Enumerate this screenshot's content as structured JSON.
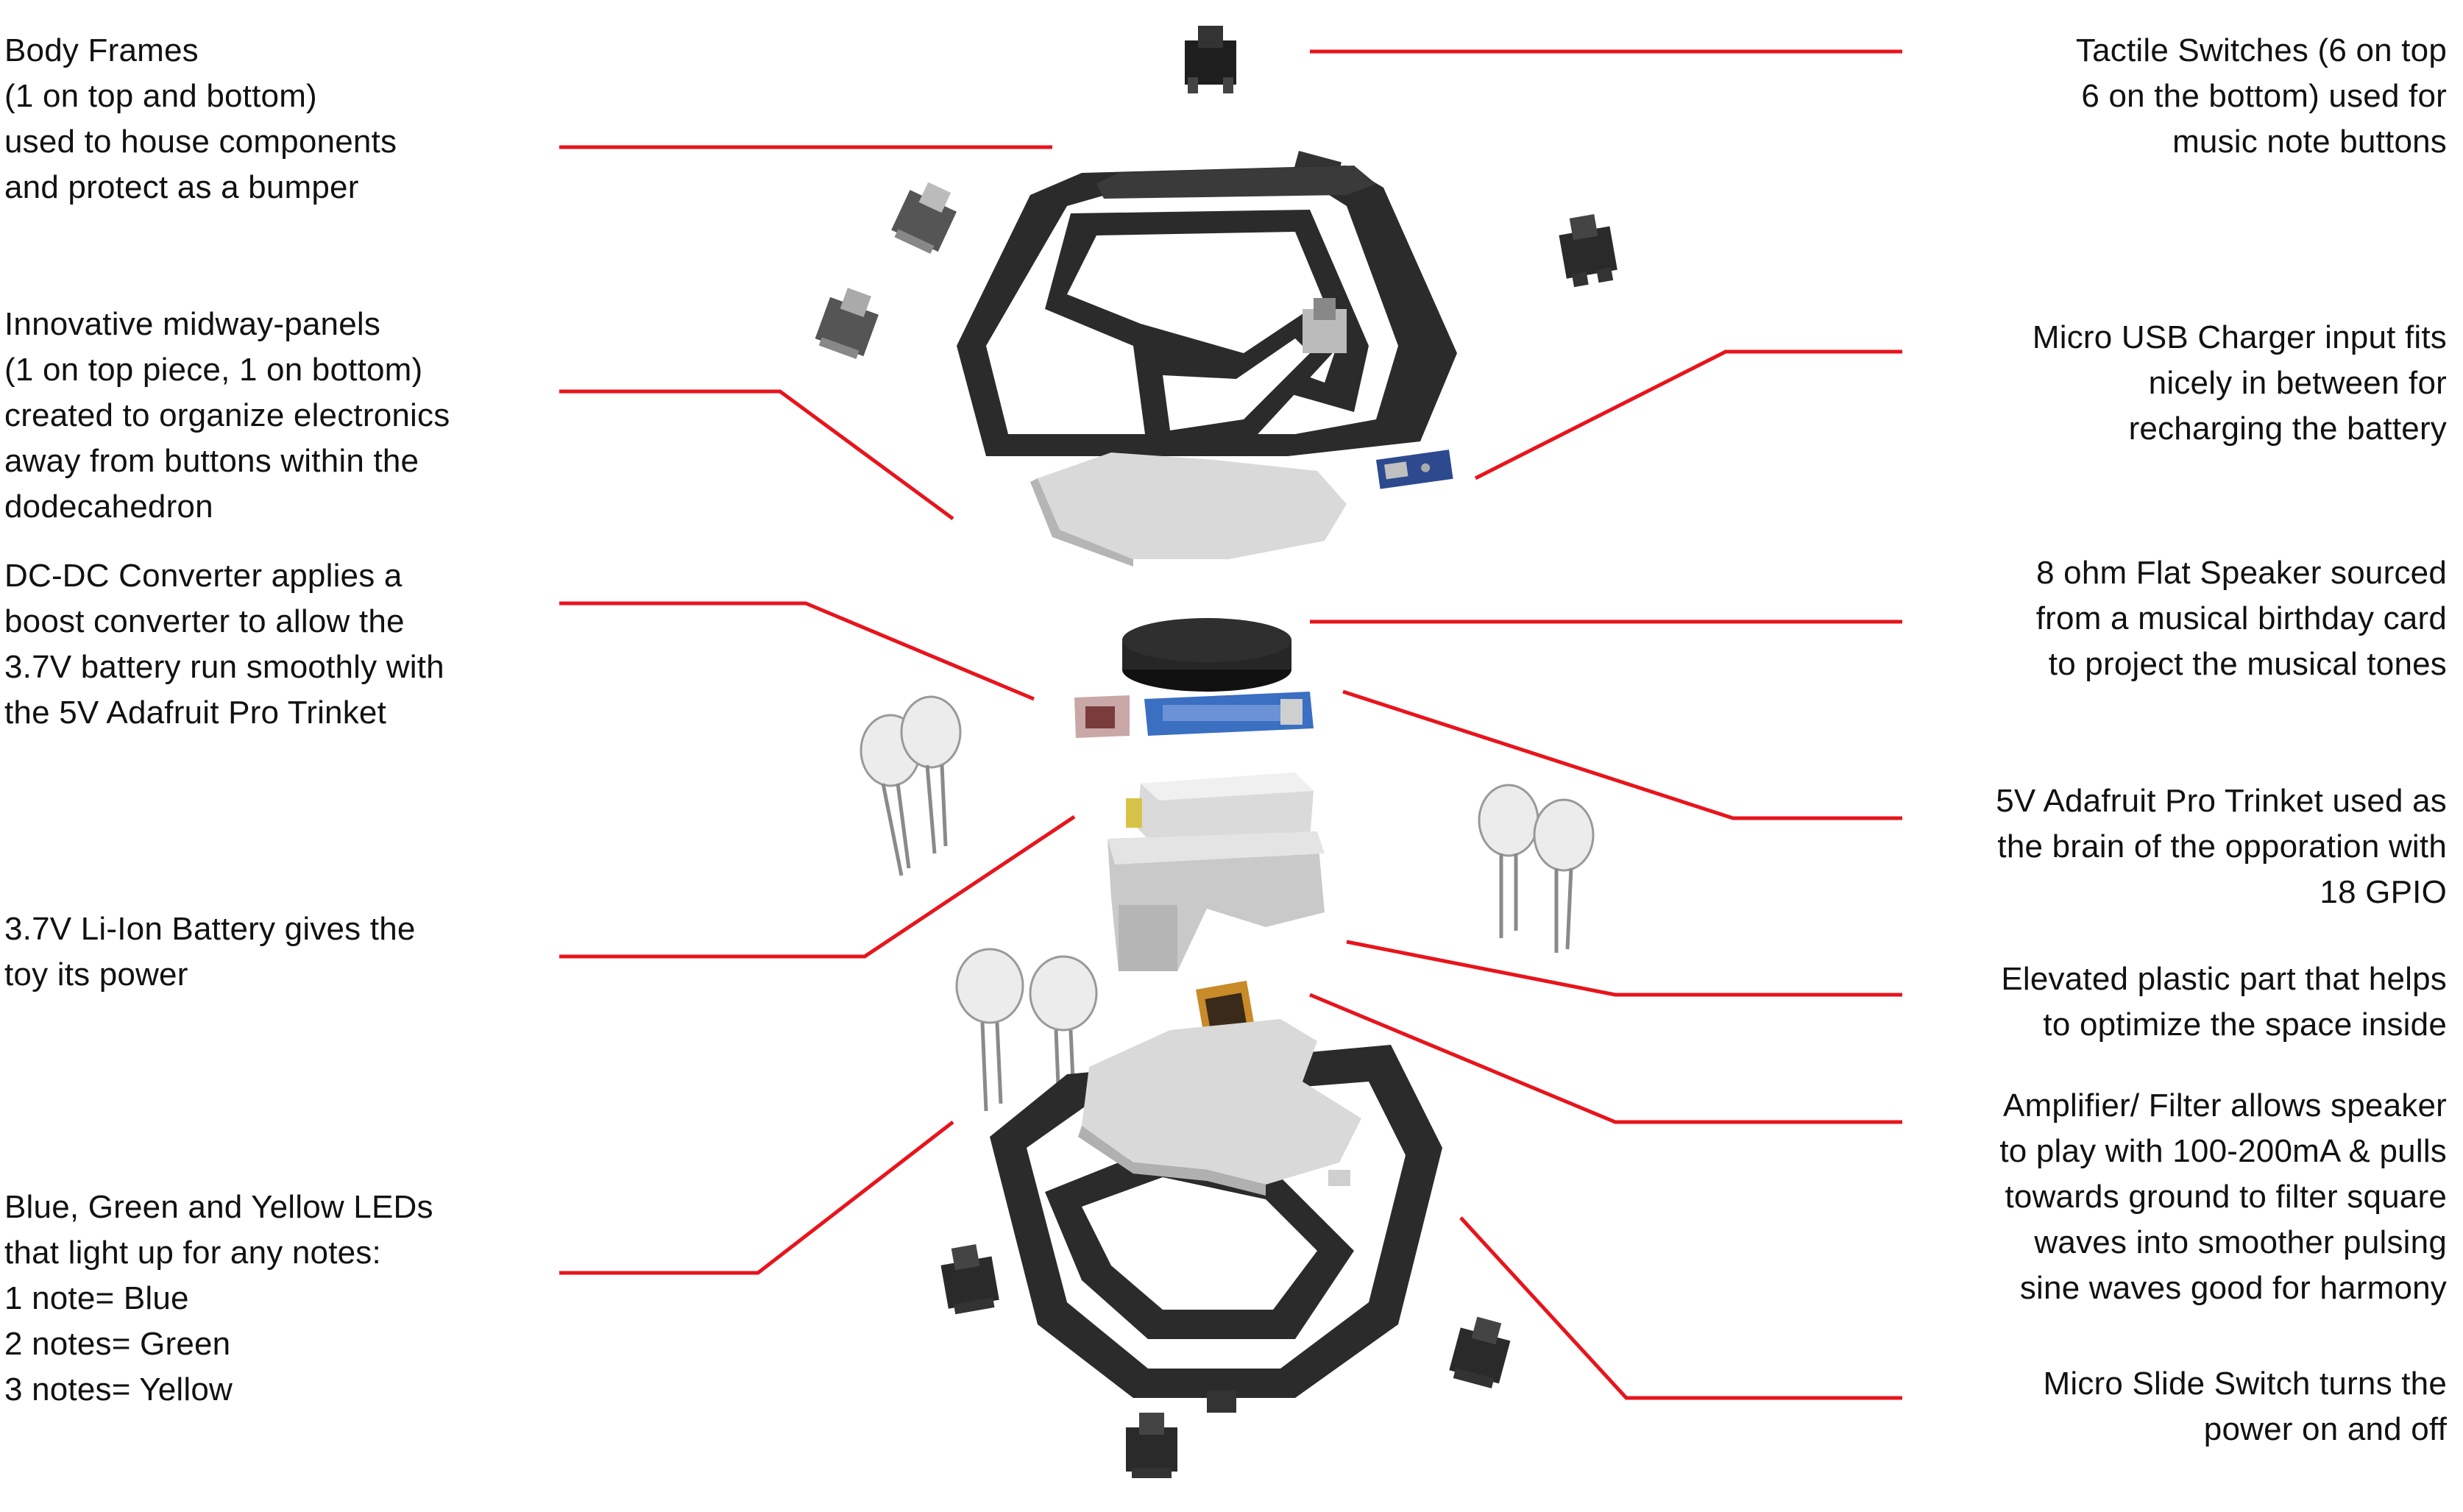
{
  "annotations": {
    "left": [
      {
        "id": "body-frames",
        "text": "Body Frames\n(1 on top and bottom)\nused to house components\nand protect as a bumper"
      },
      {
        "id": "midway-panels",
        "text": "Innovative midway-panels\n(1 on top piece, 1 on bottom)\ncreated to organize electronics\naway from buttons within the\ndodecahedron"
      },
      {
        "id": "dc-dc-converter",
        "text": "DC-DC Converter applies a\nboost converter to allow the\n3.7V battery run smoothly with\nthe 5V Adafruit Pro Trinket"
      },
      {
        "id": "battery",
        "text": "3.7V Li-Ion Battery gives the\ntoy its power"
      },
      {
        "id": "leds",
        "text": "Blue, Green and Yellow LEDs\nthat light up for any notes:\n1 note= Blue\n2 notes= Green\n3 notes= Yellow"
      }
    ],
    "right": [
      {
        "id": "tactile-switches",
        "text": "Tactile Switches (6 on top\n6 on the bottom) used for\nmusic note buttons"
      },
      {
        "id": "usb-charger",
        "text": "Micro USB Charger input fits\nnicely in between for\nrecharging the battery"
      },
      {
        "id": "speaker",
        "text": "8 ohm Flat Speaker sourced\nfrom a musical birthday card\nto project the musical tones"
      },
      {
        "id": "trinket",
        "text": "5V Adafruit Pro Trinket used as\nthe brain of the opporation with\n18 GPIO"
      },
      {
        "id": "elevated-part",
        "text": "Elevated plastic part that helps\nto optimize the space inside"
      },
      {
        "id": "amplifier",
        "text": "Amplifier/ Filter allows speaker\nto play with 100-200mA & pulls\ntowards ground to filter square\nwaves into smoother pulsing\nsine waves good for harmony"
      },
      {
        "id": "slide-switch",
        "text": "Micro Slide Switch turns the\npower on and off"
      }
    ]
  },
  "colors": {
    "leader_line": "#e8141c",
    "frame": "#2b2b2b",
    "panel": "#d9d9d9",
    "speaker": "#262626",
    "trinket": "#3a6fc2",
    "battery": "#d8c34a",
    "elevated_part": "#c9c9c9"
  }
}
